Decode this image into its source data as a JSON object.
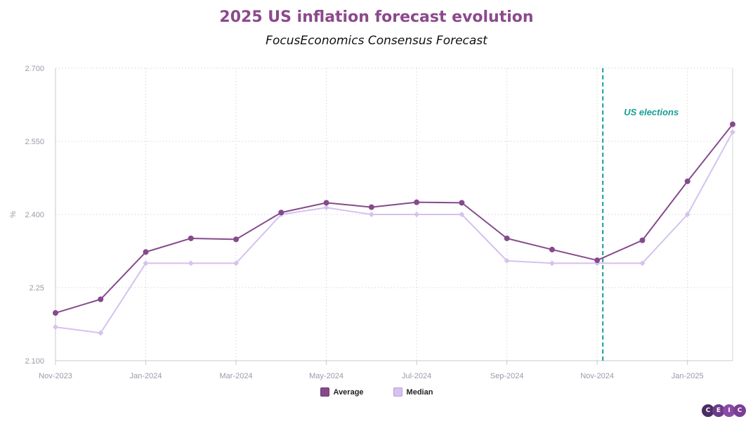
{
  "chart_data": {
    "type": "line",
    "title": "2025 US inflation forecast evolution",
    "subtitle": "FocusEconomics Consensus Forecast",
    "ylabel": "%",
    "xlabel": "",
    "ylim": [
      2.1,
      2.7
    ],
    "y_ticks": [
      "2.100",
      "2.25",
      "2.400",
      "2.550",
      "2.700"
    ],
    "y_tick_values": [
      2.1,
      2.25,
      2.4,
      2.55,
      2.7
    ],
    "x": [
      "Nov-2023",
      "Dec-2023",
      "Jan-2024",
      "Feb-2024",
      "Mar-2024",
      "Apr-2024",
      "May-2024",
      "Jun-2024",
      "Jul-2024",
      "Aug-2024",
      "Sep-2024",
      "Oct-2024",
      "Nov-2024",
      "Dec-2024",
      "Jan-2025",
      "Feb-2025"
    ],
    "x_tick_labels": [
      "Nov-2023",
      "Jan-2024",
      "Mar-2024",
      "May-2024",
      "Jul-2024",
      "Sep-2024",
      "Nov-2024",
      "Jan-2025"
    ],
    "grid": true,
    "legend_position": "bottom-center",
    "series": [
      {
        "name": "Average",
        "color": "#864a8c",
        "values": [
          2.198,
          2.226,
          2.323,
          2.351,
          2.349,
          2.404,
          2.424,
          2.415,
          2.425,
          2.424,
          2.351,
          2.328,
          2.306,
          2.347,
          2.468,
          2.585
        ]
      },
      {
        "name": "Median",
        "color": "#d5c2ee",
        "values": [
          2.169,
          2.157,
          2.3,
          2.3,
          2.3,
          2.4,
          2.414,
          2.4,
          2.4,
          2.4,
          2.305,
          2.3,
          2.3,
          2.3,
          2.4,
          2.569
        ]
      }
    ],
    "annotations": [
      {
        "text": "US elections",
        "x": "Nov-2024",
        "color": "#169e96"
      }
    ]
  },
  "logo_text": "CEIC"
}
